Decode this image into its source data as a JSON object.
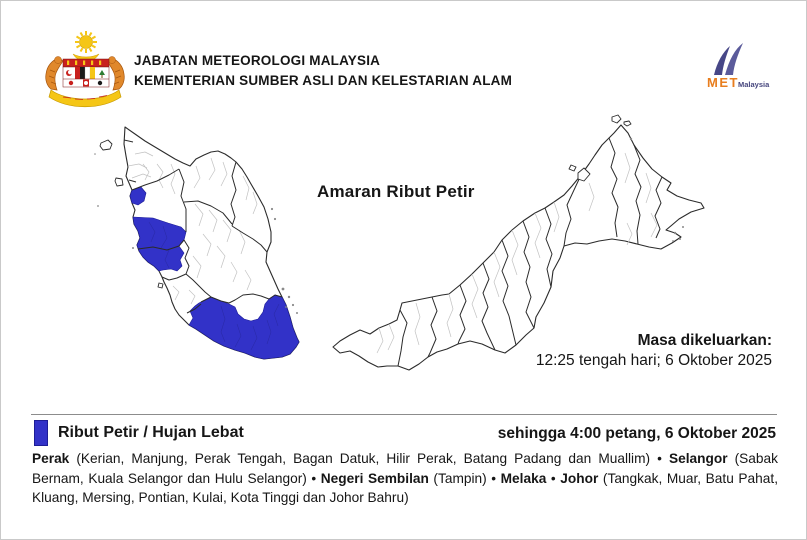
{
  "header": {
    "line1": "JABATAN METEOROLOGI MALAYSIA",
    "line2": "KEMENTERIAN SUMBER ASLI DAN KELESTARIAN ALAM",
    "met_logo": {
      "met": "MET",
      "malaysia": "Malaysia",
      "met_color": "#e87e1f",
      "navy_color": "#45457d"
    }
  },
  "map_section": {
    "title": "Amaran Ribut Petir",
    "issued_label": "Masa dikeluarkan:",
    "issued_value": "12:25 tengah hari; 6 Oktober 2025",
    "highlight_color": "#3232c8",
    "highlighted_map_regions": [
      "kerian-north-perak",
      "coastal-central-south-perak-and-north-selangor",
      "melaka-tampin-and-most-of-johor"
    ]
  },
  "legend": {
    "swatch_color": "#3232c8",
    "label": "Ribut Petir / Hujan Lebat",
    "validity": "sehingga 4:00 petang, 6 Oktober 2025"
  },
  "affected_areas": {
    "segments": [
      {
        "bold": true,
        "text": "Perak"
      },
      {
        "bold": false,
        "text": " (Kerian, Manjung, Perak Tengah, Bagan Datuk, Hilir Perak, Batang Padang dan Muallim) • "
      },
      {
        "bold": true,
        "text": "Selangor"
      },
      {
        "bold": false,
        "text": " (Sabak Bernam, Kuala Selangor dan Hulu Selangor) • "
      },
      {
        "bold": true,
        "text": "Negeri Sembilan"
      },
      {
        "bold": false,
        "text": " (Tampin) • "
      },
      {
        "bold": true,
        "text": "Melaka"
      },
      {
        "bold": false,
        "text": " • "
      },
      {
        "bold": true,
        "text": "Johor"
      },
      {
        "bold": false,
        "text": " (Tangkak, Muar, Batu Pahat, Kluang, Mersing, Pontian, Kulai, Kota Tinggi dan Johor Bahru)"
      }
    ]
  }
}
